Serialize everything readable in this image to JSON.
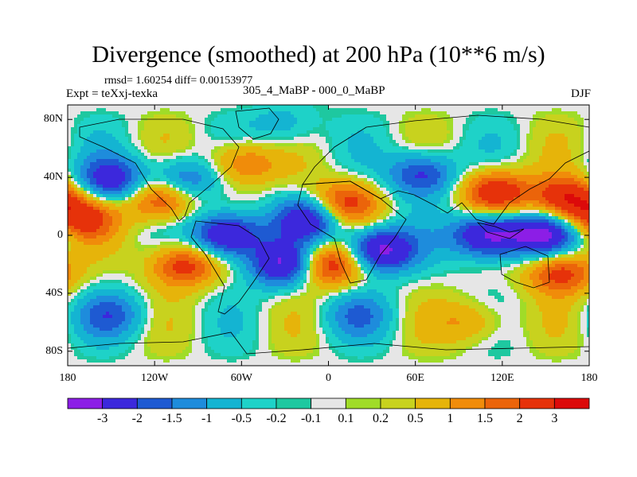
{
  "figure": {
    "title": "Divergence (smoothed) at 200 hPa (10**6 m/s)",
    "stats_label": "rmsd= 1.60254 diff= 0.00153977",
    "experiment_label": "Expt = teXxj-texka",
    "difference_label": "305_4_MaBP - 000_0_MaBP",
    "season_label": "DJF"
  },
  "chart_data": {
    "type": "heatmap",
    "title": "Divergence (smoothed) at 200 hPa (10**6 m/s)",
    "xlabel": "",
    "ylabel": "",
    "xlim": [
      -180,
      180
    ],
    "ylim": [
      -90,
      90
    ],
    "x_ticks": [
      {
        "value": -180,
        "label": "180"
      },
      {
        "value": -120,
        "label": "120W"
      },
      {
        "value": -60,
        "label": "60W"
      },
      {
        "value": 0,
        "label": "0"
      },
      {
        "value": 60,
        "label": "60E"
      },
      {
        "value": 120,
        "label": "120E"
      },
      {
        "value": 180,
        "label": "180"
      }
    ],
    "y_ticks": [
      {
        "value": 80,
        "label": "80N"
      },
      {
        "value": 40,
        "label": "40N"
      },
      {
        "value": 0,
        "label": "0"
      },
      {
        "value": -40,
        "label": "40S"
      },
      {
        "value": -80,
        "label": "80S"
      }
    ],
    "colorbar": {
      "colors": [
        "#8c1ee6",
        "#3c28dc",
        "#1e5ad2",
        "#1e8cdc",
        "#14b4d2",
        "#1ed2c8",
        "#1ec8a0",
        "#e6e6e6",
        "#a0dc28",
        "#c8d21e",
        "#e6b40a",
        "#f08c0a",
        "#eb640a",
        "#e6320a",
        "#dc0a0a"
      ],
      "labels": [
        "-3",
        "-2",
        "-1.5",
        "-1",
        "-0.5",
        "-0.2",
        "-0.1",
        "0.1",
        "0.2",
        "0.5",
        "1",
        "1.5",
        "2",
        "3"
      ]
    },
    "field_features": [
      {
        "lon": -115,
        "lat": 25,
        "value": 2.5
      },
      {
        "lon": -150,
        "lat": 38,
        "value": -2.6
      },
      {
        "lon": -100,
        "lat": 38,
        "value": -2.0
      },
      {
        "lon": -60,
        "lat": 50,
        "value": 1.8
      },
      {
        "lon": -70,
        "lat": 0,
        "value": -3.5
      },
      {
        "lon": -30,
        "lat": -20,
        "value": -3.2
      },
      {
        "lon": -12,
        "lat": 12,
        "value": -2.8
      },
      {
        "lon": 35,
        "lat": -10,
        "value": -3.6
      },
      {
        "lon": 65,
        "lat": 42,
        "value": -2.4
      },
      {
        "lon": 110,
        "lat": 0,
        "value": -3.5
      },
      {
        "lon": 148,
        "lat": 0,
        "value": -3.0
      },
      {
        "lon": 115,
        "lat": 30,
        "value": 2.8
      },
      {
        "lon": 165,
        "lat": 25,
        "value": 3.0
      },
      {
        "lon": 0,
        "lat": -20,
        "value": 3.0
      },
      {
        "lon": 10,
        "lat": 22,
        "value": 2.6
      },
      {
        "lon": -100,
        "lat": -20,
        "value": 2.5
      },
      {
        "lon": 160,
        "lat": -25,
        "value": 2.5
      },
      {
        "lon": -170,
        "lat": 12,
        "value": 2.2
      },
      {
        "lon": -150,
        "lat": -55,
        "value": -1.5
      },
      {
        "lon": 20,
        "lat": -55,
        "value": -1.2
      },
      {
        "lon": 100,
        "lat": -60,
        "value": 1.2
      },
      {
        "lon": -30,
        "lat": 75,
        "value": -1.0
      }
    ]
  }
}
